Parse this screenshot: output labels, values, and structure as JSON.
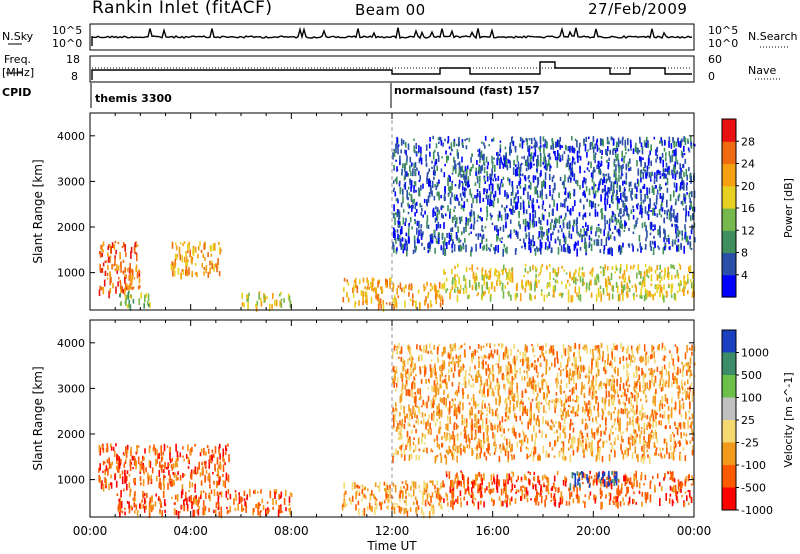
{
  "header": {
    "station": "Rankin Inlet (fitACF)",
    "beam": "Beam 00",
    "date": "27/Feb/2009"
  },
  "strip_labels": {
    "nsky": "N.Sky",
    "nsky_ticks": [
      "10^5",
      "10^0"
    ],
    "nsearch": "N.Search",
    "nsearch_ticks": [
      "10^5",
      "10^0"
    ],
    "freq": "Freq.",
    "freq_unit": "[MHz]",
    "freq_ticks": [
      "18",
      "8"
    ],
    "nave": "Nave",
    "nave_ticks": [
      "60",
      "0"
    ],
    "cpid": "CPID",
    "cpid_segments": [
      "themis 3300",
      "normalsound (fast) 157"
    ]
  },
  "colors": {
    "power": [
      "#0000ff",
      "#2a4fa8",
      "#3f8f5e",
      "#76b84e",
      "#e8d020",
      "#f4a010",
      "#f06a10",
      "#e81010"
    ],
    "velocity": [
      "#ff0000",
      "#ff5a00",
      "#f29a1c",
      "#f4d870",
      "#c0c0c0",
      "#6cc04a",
      "#3c8c6a",
      "#1a40c0"
    ]
  },
  "chart_data": [
    {
      "type": "heatmap",
      "title": "",
      "ylabel": "Slant Range [km]",
      "xlabel": "",
      "xlim": [
        "00:00",
        "24:00"
      ],
      "ylim": [
        180,
        4500
      ],
      "yticks": [
        "1000",
        "2000",
        "3000",
        "4000"
      ],
      "colorbar_label": "Power [dB]",
      "colorbar_ticks": [
        "4",
        "8",
        "12",
        "16",
        "20",
        "24",
        "28"
      ],
      "regions": [
        {
          "x": [
            0.3,
            2.0
          ],
          "y": [
            600,
            1700
          ],
          "value": 28
        },
        {
          "x": [
            3.2,
            5.2
          ],
          "y": [
            1000,
            1700
          ],
          "value": 24
        },
        {
          "x": [
            1.0,
            2.5
          ],
          "y": [
            300,
            600
          ],
          "value": 16
        },
        {
          "x": [
            6.0,
            8.0
          ],
          "y": [
            300,
            600
          ],
          "value": 20
        },
        {
          "x": [
            10.0,
            12.0
          ],
          "y": [
            300,
            900
          ],
          "value": 24
        },
        {
          "x": [
            12.0,
            14.0
          ],
          "y": [
            300,
            800
          ],
          "value": 24
        },
        {
          "x": [
            14.0,
            24.0
          ],
          "y": [
            500,
            1200
          ],
          "value": 20
        },
        {
          "x": [
            12.0,
            24.0
          ],
          "y": [
            1500,
            4000
          ],
          "value": 8
        }
      ]
    },
    {
      "type": "heatmap",
      "title": "",
      "ylabel": "Slant Range [km]",
      "xlabel": "Time UT",
      "xlim": [
        "00:00",
        "24:00"
      ],
      "ylim": [
        180,
        4500
      ],
      "xticks": [
        "00:00",
        "04:00",
        "08:00",
        "12:00",
        "16:00",
        "20:00",
        "00:00"
      ],
      "yticks": [
        "1000",
        "2000",
        "3000",
        "4000"
      ],
      "colorbar_label": "Velocity [m s^-1]",
      "colorbar_ticks": [
        "1000",
        "500",
        "100",
        "25",
        "-25",
        "-100",
        "-500",
        "-1000"
      ],
      "regions": [
        {
          "x": [
            0.3,
            5.5
          ],
          "y": [
            900,
            1800
          ],
          "value": -500
        },
        {
          "x": [
            1.0,
            8.0
          ],
          "y": [
            300,
            800
          ],
          "value": -500
        },
        {
          "x": [
            10.0,
            14.0
          ],
          "y": [
            300,
            1000
          ],
          "value": -100
        },
        {
          "x": [
            14.0,
            24.0
          ],
          "y": [
            500,
            1200
          ],
          "value": -500
        },
        {
          "x": [
            19.0,
            21.0
          ],
          "y": [
            900,
            1200
          ],
          "value": 1000
        },
        {
          "x": [
            12.0,
            24.0
          ],
          "y": [
            1500,
            4000
          ],
          "value": -100
        }
      ]
    }
  ]
}
